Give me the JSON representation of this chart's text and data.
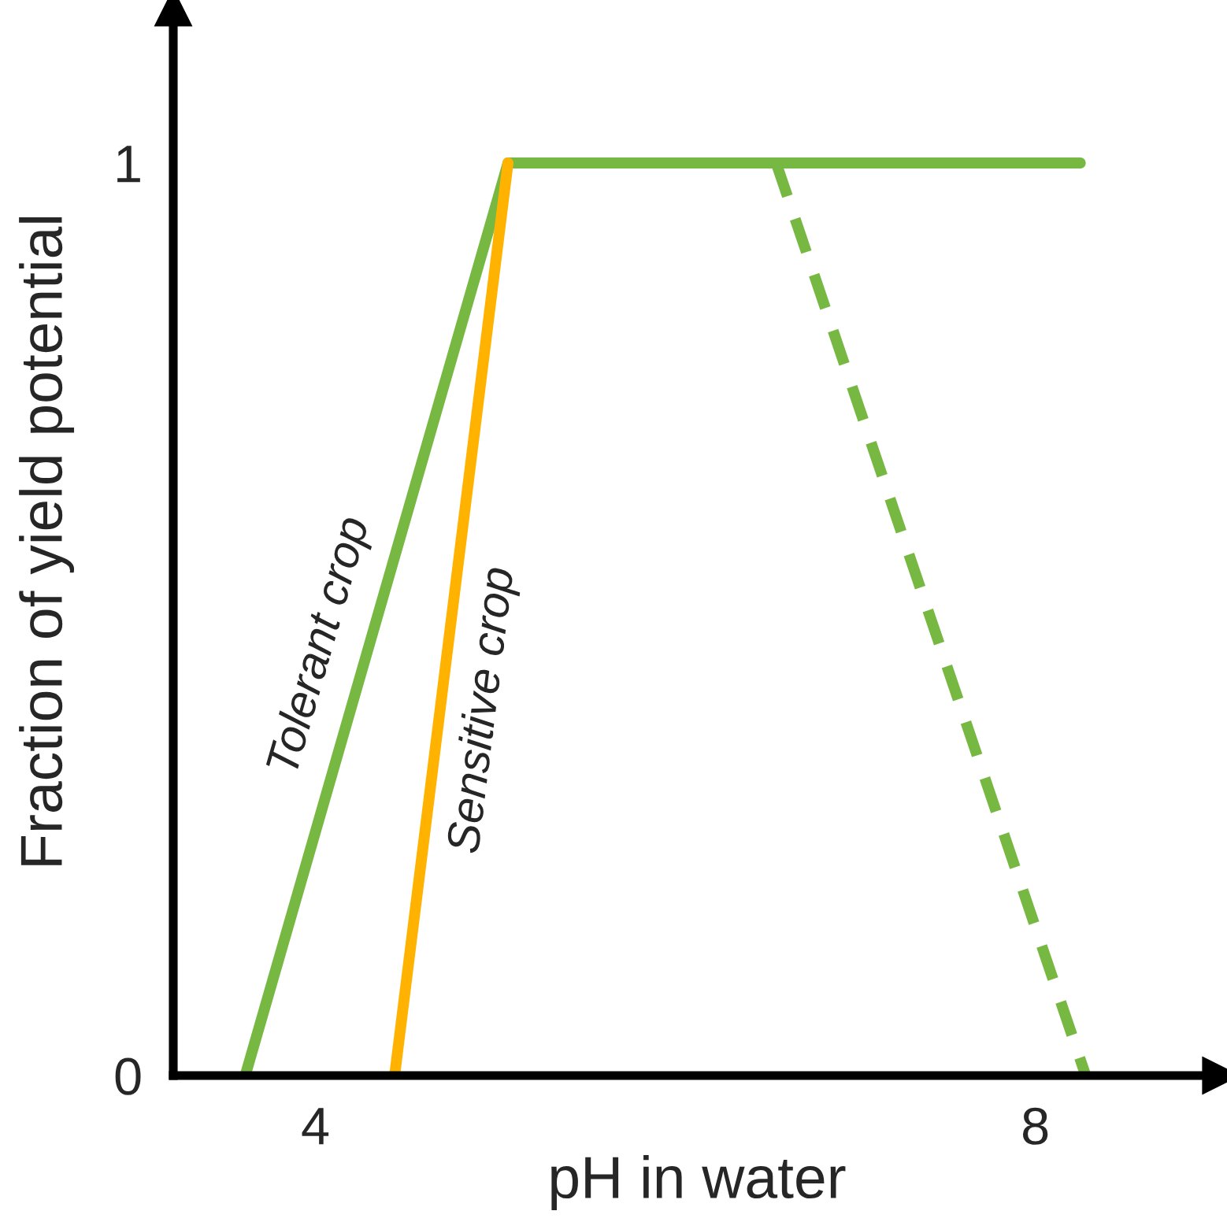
{
  "chart_data": {
    "type": "line",
    "xlabel": "pH in water",
    "ylabel": "Fraction of yield potential",
    "xlim": [
      3.21,
      9.03
    ],
    "ylim": [
      0,
      1.17
    ],
    "xticks": [
      4,
      8
    ],
    "yticks": [
      0,
      1
    ],
    "grid": false,
    "marker": "none",
    "series": [
      {
        "name": "Tolerant crop",
        "color": "#77b843",
        "x": [
          3.61,
          5.07,
          8.25
        ],
        "values": [
          0,
          1,
          1
        ],
        "line_style": "solid"
      },
      {
        "name": "Sensitive crop",
        "color": "#ffb300",
        "x": [
          4.44,
          5.07
        ],
        "values": [
          0,
          1
        ],
        "line_style": "solid"
      },
      {
        "color": "#77b843",
        "x": [
          6.56,
          8.28
        ],
        "values": [
          1,
          0
        ],
        "line_style": "dashed"
      }
    ]
  }
}
